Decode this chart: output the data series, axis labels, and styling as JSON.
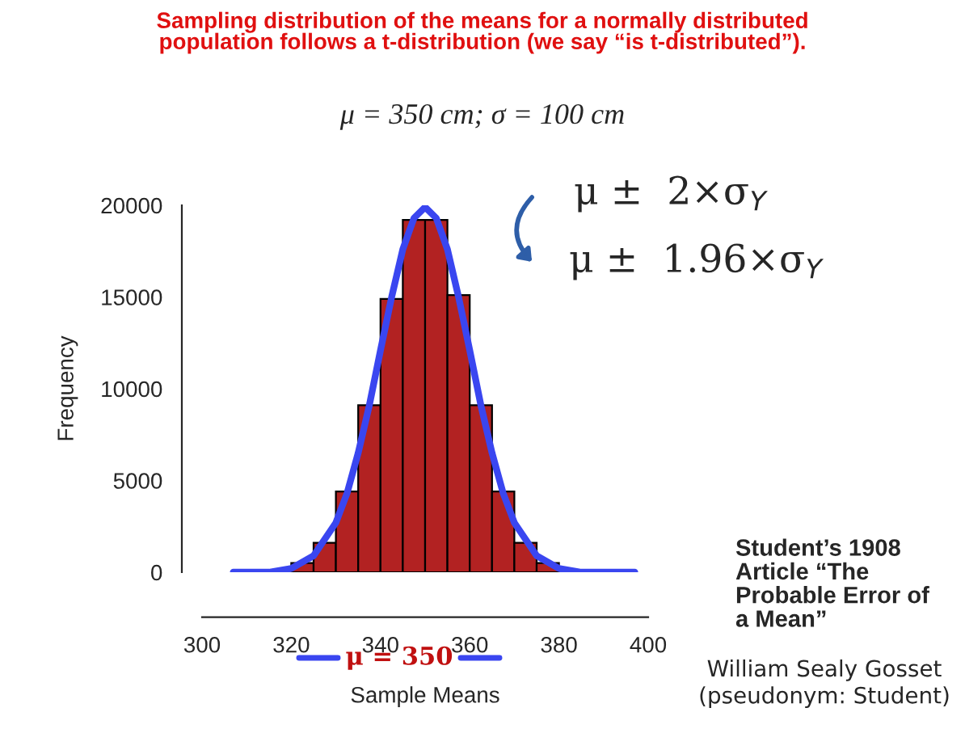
{
  "chart_data": {
    "type": "histogram",
    "title": "Sampling distribution of the means for a normally distributed\npopulation follows a t-distribution (we say “is t-distributed”).",
    "subtitle": "μ = 350 cm; σ = 100 cm",
    "xlabel": "Sample Means",
    "ylabel": "Frequency",
    "bins": [
      320,
      325,
      330,
      335,
      340,
      345,
      350,
      355,
      360,
      365,
      370,
      375,
      380
    ],
    "values": [
      500,
      1600,
      4400,
      9100,
      14900,
      19200,
      19200,
      15100,
      9100,
      4400,
      1600,
      500
    ],
    "color": "#b22222",
    "series": [
      {
        "type": "line",
        "color": "#3a46f0",
        "x": [
          307,
          315,
          320,
          325,
          330,
          332.5,
          335,
          337.5,
          340,
          342.5,
          345,
          347.5,
          350,
          352.5,
          355,
          357.5,
          360,
          362.5,
          365,
          367.5,
          370,
          375,
          380,
          385,
          390,
          397
        ],
        "values": [
          0,
          0,
          200,
          900,
          2700,
          4300,
          6500,
          9100,
          12100,
          15000,
          17600,
          19300,
          19900,
          19300,
          17600,
          15000,
          12100,
          9100,
          6500,
          4300,
          2700,
          900,
          200,
          0,
          0,
          0
        ]
      }
    ],
    "xlim": [
      300,
      400
    ],
    "xticks": [
      300,
      320,
      340,
      360,
      380,
      400
    ],
    "ylim": [
      0,
      20000
    ],
    "yticks": [
      0,
      5000,
      10000,
      15000,
      20000
    ],
    "annotations": [
      "μ ±  2×σ$_{Y}$",
      "μ ±  1.96×σ$_{Y}$",
      "μ = 350",
      "Student’s 1908\nArticle “The\nProbable Error of\na Mean”",
      "William Sealy Gosset\n(pseudonym: Student)"
    ]
  }
}
